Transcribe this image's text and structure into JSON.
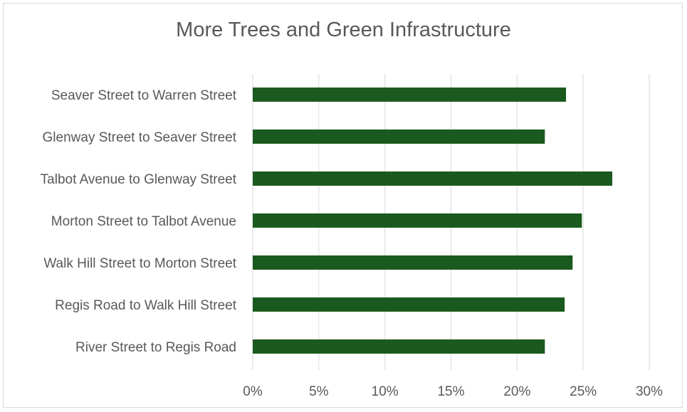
{
  "chart_data": {
    "type": "bar",
    "orientation": "horizontal",
    "title": "More Trees and Green Infrastructure",
    "xlabel": "",
    "ylabel": "",
    "categories": [
      "Seaver Street to Warren Street",
      "Glenway Street to Seaver Street",
      "Talbot Avenue to Glenway Street",
      "Morton Street to Talbot Avenue",
      "Walk Hill Street to Morton Street",
      "Regis Road to Walk Hill Street",
      "River Street to Regis Road"
    ],
    "values": [
      0.237,
      0.221,
      0.272,
      0.249,
      0.242,
      0.236,
      0.221
    ],
    "xlim": [
      0,
      0.3
    ],
    "x_ticks": [
      "0%",
      "5%",
      "10%",
      "15%",
      "20%",
      "25%",
      "30%"
    ],
    "x_tick_values": [
      0,
      0.05,
      0.1,
      0.15,
      0.2,
      0.25,
      0.3
    ],
    "grid": "vertical",
    "legend": "none",
    "bar_color": "#1a5a1e"
  }
}
